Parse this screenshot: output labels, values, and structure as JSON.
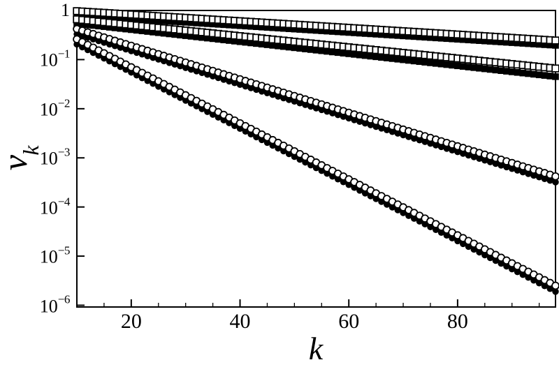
{
  "figure": {
    "background": "#ffffff",
    "ink_color": "#000000"
  },
  "chart_data": {
    "type": "scatter",
    "title": "",
    "xlabel": "k",
    "ylabel_base": "v",
    "ylabel_sub": "k",
    "grid": "off",
    "legend": "none",
    "frame": "full-box",
    "x_axis": {
      "scale": "linear",
      "min": 10,
      "max": 98,
      "major_ticks": [
        20,
        40,
        60,
        80
      ],
      "minor_ticks": [
        15,
        25,
        30,
        35,
        45,
        50,
        55,
        65,
        70,
        75,
        85,
        90,
        95
      ]
    },
    "y_axis": {
      "scale": "log",
      "min": 1e-06,
      "max": 1,
      "ticks": [
        {
          "label": "1",
          "value": 1
        },
        {
          "base": "10",
          "exp": "−1",
          "value": 0.1
        },
        {
          "base": "10",
          "exp": "−2",
          "value": 0.01
        },
        {
          "base": "10",
          "exp": "−3",
          "value": 0.001
        },
        {
          "base": "10",
          "exp": "−4",
          "value": 0.0001
        },
        {
          "base": "10",
          "exp": "−5",
          "value": 1e-05
        },
        {
          "base": "10",
          "exp": "−6",
          "value": 1e-06
        }
      ]
    },
    "series": [
      {
        "name": "pair1-open-squares",
        "marker": "open-square",
        "trend": "exponential-decay",
        "k_start": 10,
        "k_end": 98,
        "k_step": 1,
        "v_at_k_start": 0.97,
        "v_at_k_end": 0.245
      },
      {
        "name": "pair1-filled-squares",
        "marker": "filled-square",
        "trend": "exponential-decay",
        "k_start": 10,
        "k_end": 98,
        "k_step": 1,
        "v_at_k_start": 0.79,
        "v_at_k_end": 0.195
      },
      {
        "name": "pair2-open-squares",
        "marker": "open-square",
        "trend": "exponential-decay",
        "k_start": 10,
        "k_end": 98,
        "k_step": 1,
        "v_at_k_start": 0.66,
        "v_at_k_end": 0.066
      },
      {
        "name": "pair2-filled-squares",
        "marker": "filled-square",
        "trend": "exponential-decay",
        "k_start": 10,
        "k_end": 98,
        "k_step": 1,
        "v_at_k_start": 0.54,
        "v_at_k_end": 0.045
      },
      {
        "name": "pair3-open-circles",
        "marker": "open-circle",
        "trend": "exponential-decay",
        "k_start": 10,
        "k_end": 98,
        "k_step": 1,
        "v_at_k_start": 0.42,
        "v_at_k_end": 0.00042
      },
      {
        "name": "pair3-filled-circles",
        "marker": "filled-circle",
        "trend": "exponential-decay",
        "k_start": 10,
        "k_end": 98,
        "k_step": 1,
        "v_at_k_start": 0.33,
        "v_at_k_end": 0.00032
      },
      {
        "name": "pair4-open-circles",
        "marker": "open-circle",
        "trend": "exponential-decay",
        "k_start": 10,
        "k_end": 98,
        "k_step": 1,
        "v_at_k_start": 0.26,
        "v_at_k_end": 2.5e-06
      },
      {
        "name": "pair4-filled-circles",
        "marker": "filled-circle",
        "trend": "exponential-decay",
        "k_start": 10,
        "k_end": 98,
        "k_step": 1,
        "v_at_k_start": 0.205,
        "v_at_k_end": 1.9e-06
      }
    ]
  }
}
